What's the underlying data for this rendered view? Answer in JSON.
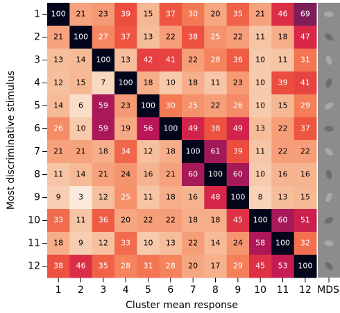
{
  "chart_data": {
    "type": "heatmap",
    "x_label": "Cluster mean response",
    "y_label": "Most discriminative stimulus",
    "x_categories": [
      "1",
      "2",
      "3",
      "4",
      "5",
      "6",
      "7",
      "8",
      "9",
      "10",
      "11",
      "12"
    ],
    "y_categories": [
      "1",
      "2",
      "3",
      "4",
      "5",
      "6",
      "7",
      "8",
      "9",
      "10",
      "11",
      "12"
    ],
    "extra_column_label": "MDS",
    "colormap": [
      "#faebdd",
      "#f6c19f",
      "#f6a47f",
      "#f47d57",
      "#ed503e",
      "#d92847",
      "#b91657",
      "#921c5b",
      "#6a1f56",
      "#451c47",
      "#221331",
      "#03051a"
    ],
    "values": [
      [
        100,
        21,
        23,
        39,
        15,
        37,
        30,
        20,
        35,
        21,
        46,
        69
      ],
      [
        21,
        100,
        27,
        37,
        13,
        22,
        38,
        25,
        22,
        11,
        18,
        47
      ],
      [
        13,
        14,
        100,
        13,
        42,
        41,
        22,
        28,
        36,
        10,
        11,
        31
      ],
      [
        12,
        15,
        7,
        100,
        18,
        10,
        18,
        11,
        23,
        10,
        39,
        41
      ],
      [
        14,
        6,
        59,
        23,
        100,
        30,
        25,
        22,
        26,
        10,
        15,
        29
      ],
      [
        26,
        10,
        59,
        19,
        56,
        100,
        49,
        38,
        49,
        13,
        22,
        37
      ],
      [
        21,
        21,
        18,
        34,
        12,
        18,
        100,
        61,
        39,
        11,
        22,
        22
      ],
      [
        11,
        14,
        21,
        24,
        16,
        21,
        60,
        100,
        60,
        10,
        16,
        16
      ],
      [
        9,
        3,
        12,
        25,
        11,
        18,
        16,
        48,
        100,
        8,
        13,
        15
      ],
      [
        33,
        11,
        36,
        20,
        22,
        22,
        18,
        18,
        45,
        100,
        60,
        51
      ],
      [
        18,
        9,
        12,
        33,
        10,
        13,
        22,
        14,
        24,
        58,
        100,
        32
      ],
      [
        38,
        46,
        35,
        28,
        31,
        28,
        20,
        17,
        29,
        45,
        53,
        100
      ]
    ]
  }
}
